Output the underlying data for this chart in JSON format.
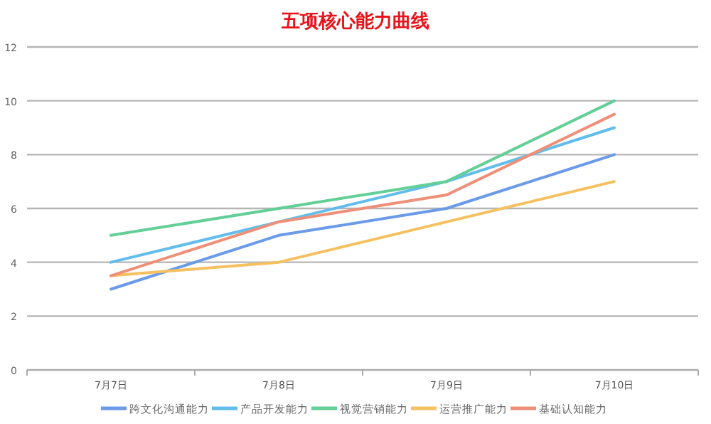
{
  "chart_data": {
    "type": "line",
    "title": "五项核心能力曲线",
    "categories": [
      "7月7日",
      "7月8日",
      "7月9日",
      "7月10日"
    ],
    "series": [
      {
        "name": "跨文化沟通能力",
        "color": "#6a9ae8",
        "values": [
          3,
          5,
          6,
          8
        ]
      },
      {
        "name": "产品开发能力",
        "color": "#62bdeb",
        "values": [
          4,
          5.5,
          7,
          9
        ]
      },
      {
        "name": "视觉营销能力",
        "color": "#63cf97",
        "values": [
          5,
          6,
          7,
          10
        ]
      },
      {
        "name": "运营推广能力",
        "color": "#f5c060",
        "values": [
          3.5,
          4,
          5.5,
          7
        ]
      },
      {
        "name": "基础认知能力",
        "color": "#ee8f78",
        "values": [
          3.5,
          5.5,
          6.5,
          9.5
        ]
      }
    ],
    "ylim": [
      0,
      12
    ],
    "yticks": [
      0,
      2,
      4,
      6,
      8,
      10,
      12
    ],
    "grid": "y",
    "legend": "bottom",
    "marker": "none",
    "line_style": "solid"
  }
}
